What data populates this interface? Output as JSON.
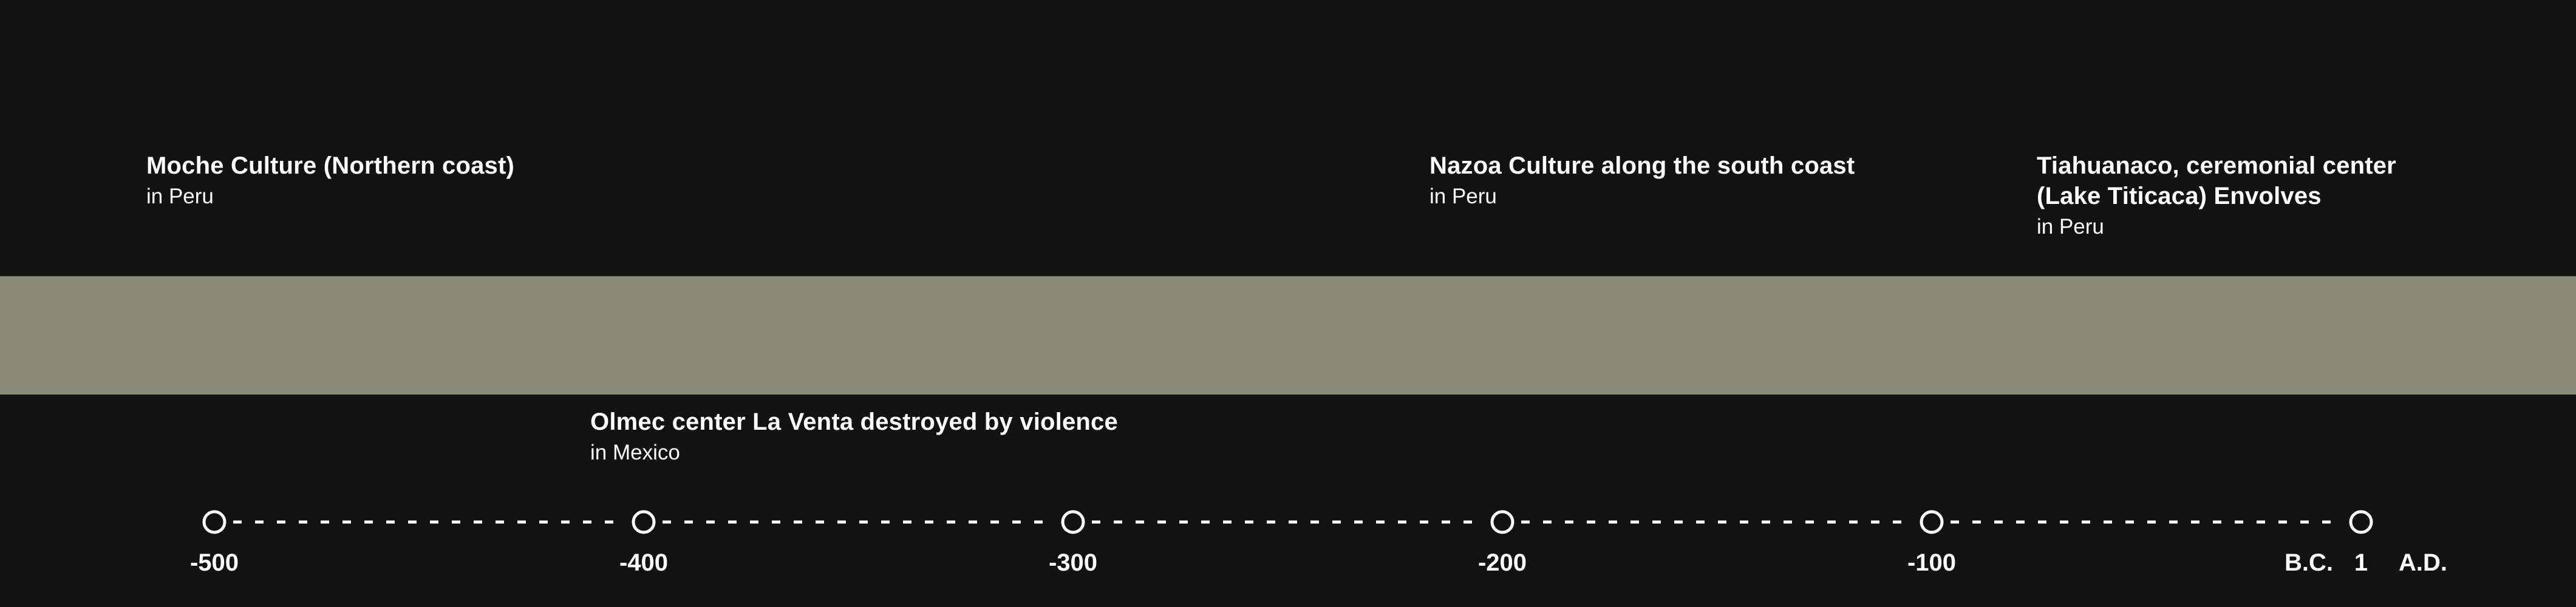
{
  "colors": {
    "background": "#121213",
    "band": "#878876",
    "text": "#ffffff",
    "axis": "#ffffff"
  },
  "events_above": [
    {
      "title": "Moche Culture (Northern coast)",
      "place": "in Peru"
    },
    {
      "title": "Nazoa Culture along the south coast",
      "place": "in Peru"
    },
    {
      "title": "Tiahuanaco, ceremonial center\n(Lake Titicaca) Envolves",
      "place": "in Peru"
    }
  ],
  "events_below": [
    {
      "title": "Olmec center La Venta destroyed by violence",
      "place": "in Mexico"
    }
  ],
  "axis": {
    "ticks": [
      "-500",
      "-400",
      "-300",
      "-200",
      "-100",
      "1"
    ],
    "bc_label": "B.C.",
    "ad_label": "A.D."
  }
}
